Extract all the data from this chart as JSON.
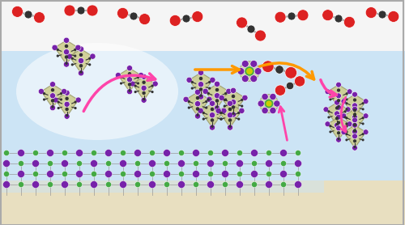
{
  "bg_top": "#f0f0f0",
  "bg_main": "#cce4f5",
  "bg_surface": "#e8dfc0",
  "atom_red": "#dd2222",
  "atom_black": "#333333",
  "atom_purple": "#7722aa",
  "atom_green": "#44aa44",
  "atom_yellow": "#cccc00",
  "cluster_tan": "#cccc88",
  "arrow_orange": "#ff9900",
  "arrow_pink": "#ff44aa",
  "figsize": [
    5.0,
    2.78
  ],
  "dpi": 100
}
